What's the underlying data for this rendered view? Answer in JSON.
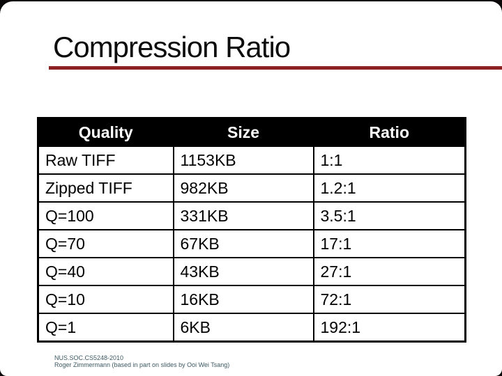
{
  "slide": {
    "title": "Compression Ratio",
    "accent_color": "#8b2121",
    "background_color": "#ffffff",
    "frame_color": "#0a0808"
  },
  "table": {
    "header_bg": "#000000",
    "header_text_color": "#ffffff",
    "border_color": "#000000",
    "headers": [
      "Quality",
      "Size",
      "Ratio"
    ],
    "rows": [
      [
        "Raw TIFF",
        "1153KB",
        "1:1"
      ],
      [
        "Zipped TIFF",
        "982KB",
        "1.2:1"
      ],
      [
        "Q=100",
        "331KB",
        "3.5:1"
      ],
      [
        "Q=70",
        "67KB",
        "17:1"
      ],
      [
        "Q=40",
        "43KB",
        "27:1"
      ],
      [
        "Q=10",
        "16KB",
        "72:1"
      ],
      [
        "Q=1",
        "6KB",
        "192:1"
      ]
    ]
  },
  "footer": {
    "line1": "NUS.SOC.CS5248-2010",
    "line2": "Roger Zimmermann (based in part on slides by Ooi Wei Tsang)",
    "color": "#3c5862"
  },
  "chart_data": {
    "type": "table",
    "title": "Compression Ratio",
    "columns": [
      "Quality",
      "Size",
      "Ratio"
    ],
    "rows": [
      [
        "Raw TIFF",
        "1153KB",
        "1:1"
      ],
      [
        "Zipped TIFF",
        "982KB",
        "1.2:1"
      ],
      [
        "Q=100",
        "331KB",
        "3.5:1"
      ],
      [
        "Q=70",
        "67KB",
        "17:1"
      ],
      [
        "Q=40",
        "43KB",
        "27:1"
      ],
      [
        "Q=10",
        "16KB",
        "72:1"
      ],
      [
        "Q=1",
        "6KB",
        "192:1"
      ]
    ]
  }
}
